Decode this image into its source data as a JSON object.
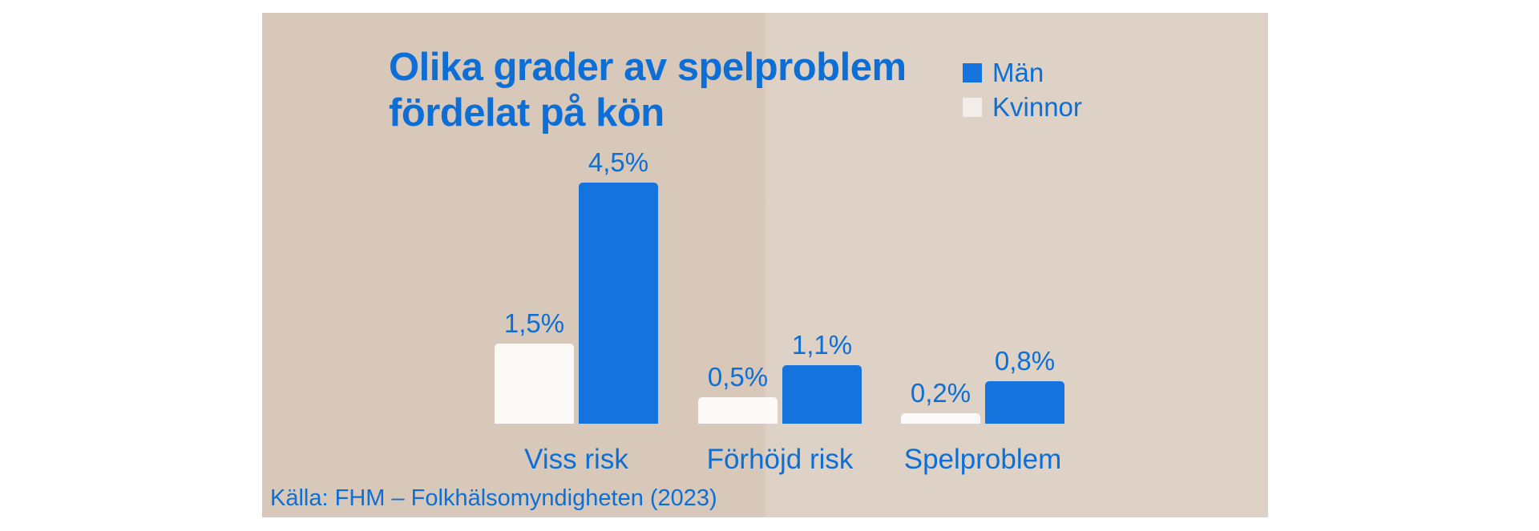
{
  "colors": {
    "page_background": "#ffffff",
    "panel_background_left": "#d7c8ba",
    "panel_background_right": "#ded1c5",
    "text_blue": "#0d6fd6",
    "bar_men": "#1473dc",
    "bar_women": "#fbfaf8",
    "legend_women_swatch": "#f2ede9"
  },
  "header": {
    "title_line1": "Olika grader av spelproblem",
    "title_line2": "fördelat på kön"
  },
  "source": "Källa: FHM – Folkhälsomyndigheten (2023)",
  "chart_data": {
    "type": "bar",
    "title": "Olika grader av spelproblem fördelat på kön",
    "categories": [
      "Viss risk",
      "Förhöjd risk",
      "Spelproblem"
    ],
    "series": [
      {
        "name": "Män",
        "color": "#1473dc",
        "values": [
          4.5,
          1.1,
          0.8
        ],
        "labels": [
          "4,5%",
          "1,1%",
          "0,8%"
        ]
      },
      {
        "name": "Kvinnor",
        "color": "#fbfaf8",
        "values": [
          1.5,
          0.5,
          0.2
        ],
        "labels": [
          "1,5%",
          "0,5%",
          "0,2%"
        ]
      }
    ],
    "value_unit": "percent",
    "ylim": [
      0,
      5
    ],
    "grid": false,
    "legend_position": "top-right",
    "bar_order_in_group": [
      "Kvinnor",
      "Män"
    ],
    "source": "Källa: FHM – Folkhälsomyndigheten (2023)"
  }
}
